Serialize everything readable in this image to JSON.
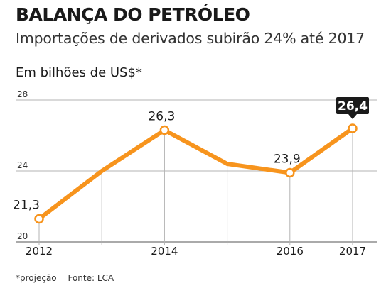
{
  "title": "BALANÇA DO PETRÓLEO",
  "subtitle": "Importações de derivados subirão 24% até 2017",
  "unit_label": "Em bilhões de US$*",
  "footnote": "*projeção",
  "source": "Fonte: LCA",
  "colors": {
    "line": "#f7941d",
    "grid": "#b3b3b3",
    "highlight_bg": "#1a1a1a",
    "highlight_text": "#ffffff"
  },
  "chart_data": {
    "type": "line",
    "x": [
      2012,
      2013,
      2014,
      2015,
      2016,
      2017
    ],
    "series": [
      {
        "values": [
          21.3,
          24.0,
          26.3,
          24.4,
          23.9,
          26.4
        ]
      }
    ],
    "marked_points": [
      {
        "x": 2012,
        "label": "21,3"
      },
      {
        "x": 2014,
        "label": "26,3"
      },
      {
        "x": 2016,
        "label": "23,9"
      },
      {
        "x": 2017,
        "label": "26,4",
        "highlight": true
      }
    ],
    "x_ticks": [
      "2012",
      "2014",
      "2016",
      "2017"
    ],
    "y_ticks": [
      "20",
      "24",
      "28"
    ],
    "y_tick_values": [
      20,
      24,
      28
    ],
    "ylim": [
      20,
      28
    ],
    "xlim": [
      2012,
      2017
    ],
    "grid": true,
    "xlabel": "",
    "ylabel": ""
  }
}
